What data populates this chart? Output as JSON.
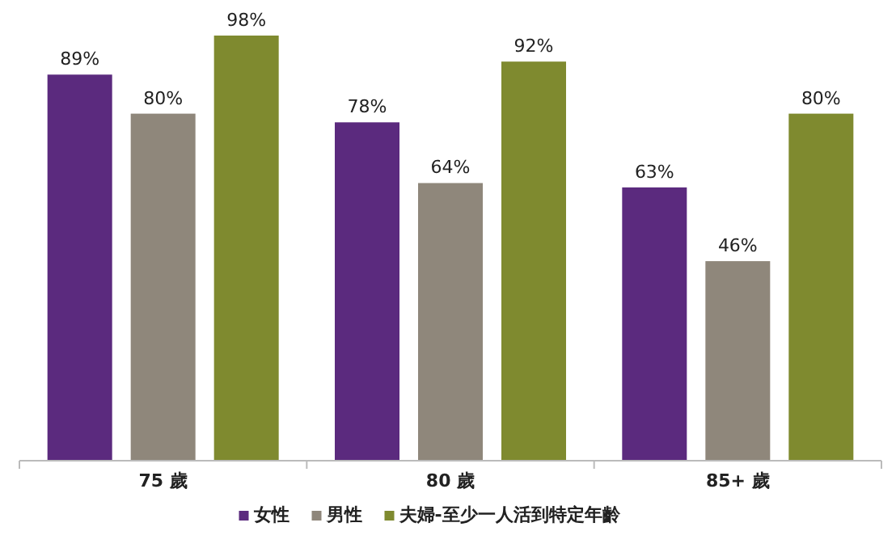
{
  "chart_data": {
    "type": "bar",
    "categories": [
      "75 歲",
      "80 歲",
      "85+ 歲"
    ],
    "series": [
      {
        "name": "女性",
        "color": "#5b2a7e",
        "values": [
          89,
          78,
          63
        ],
        "value_labels": [
          "89%",
          "78%",
          "63%"
        ]
      },
      {
        "name": "男性",
        "color": "#8f877b",
        "values": [
          80,
          64,
          46
        ],
        "value_labels": [
          "80%",
          "64%",
          "46%"
        ]
      },
      {
        "name": "夫婦-至少一人活到特定年齡",
        "color": "#7f8a2f",
        "values": [
          98,
          92,
          80
        ],
        "value_labels": [
          "98%",
          "92%",
          "80%"
        ]
      }
    ],
    "legend": "bottom"
  }
}
